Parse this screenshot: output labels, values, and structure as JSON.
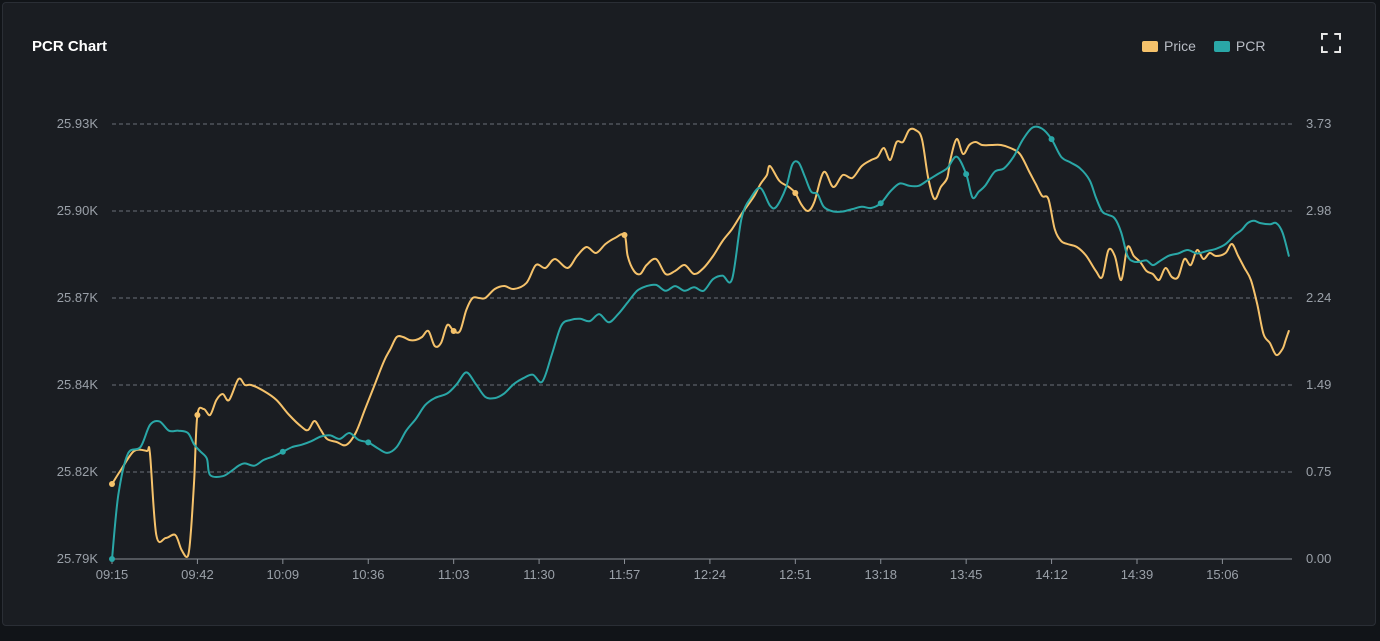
{
  "panel": {
    "title": "PCR Chart"
  },
  "legend": [
    {
      "label": "Price",
      "color": "#f5c26b"
    },
    {
      "label": "PCR",
      "color": "#2aa7a7"
    }
  ],
  "icons": {
    "expand": "fullscreen-icon"
  },
  "chart_data": {
    "type": "line",
    "title": "PCR Chart",
    "grid": "horizontal dashed",
    "legend_position": "top-right",
    "x_ticks": [
      "09:15",
      "09:42",
      "10:09",
      "10:36",
      "11:03",
      "11:30",
      "11:57",
      "12:24",
      "12:51",
      "13:18",
      "13:45",
      "14:12",
      "14:39",
      "15:06"
    ],
    "y_left_ticks": [
      "25.79K",
      "25.82K",
      "25.84K",
      "25.87K",
      "25.90K",
      "25.93K"
    ],
    "y_right_ticks": [
      "0.00",
      "0.75",
      "1.49",
      "2.24",
      "2.98",
      "3.73"
    ],
    "y_left_range": [
      25790,
      25935
    ],
    "y_right_range": [
      0,
      3.73
    ],
    "x_range_minutes": [
      0,
      373
    ],
    "series": [
      {
        "name": "Price",
        "axis": "left",
        "color": "#f5c26b",
        "points": [
          [
            0,
            25815
          ],
          [
            3,
            25820
          ],
          [
            7,
            25826
          ],
          [
            11,
            25826
          ],
          [
            12,
            25825
          ],
          [
            14,
            25798
          ],
          [
            17,
            25797
          ],
          [
            20,
            25798
          ],
          [
            22,
            25793
          ],
          [
            24,
            25791
          ],
          [
            25,
            25800
          ],
          [
            26,
            25817
          ],
          [
            27,
            25838
          ],
          [
            29,
            25840
          ],
          [
            31,
            25838
          ],
          [
            33,
            25843
          ],
          [
            35,
            25845
          ],
          [
            37,
            25843
          ],
          [
            40,
            25850
          ],
          [
            42,
            25848
          ],
          [
            44,
            25848
          ],
          [
            48,
            25846
          ],
          [
            52,
            25843
          ],
          [
            56,
            25838
          ],
          [
            60,
            25834
          ],
          [
            62,
            25833
          ],
          [
            64,
            25836
          ],
          [
            66,
            25833
          ],
          [
            68,
            25830
          ],
          [
            71,
            25829
          ],
          [
            74,
            25828
          ],
          [
            77,
            25832
          ],
          [
            80,
            25840
          ],
          [
            83,
            25848
          ],
          [
            86,
            25856
          ],
          [
            88,
            25860
          ],
          [
            90,
            25864
          ],
          [
            92,
            25864
          ],
          [
            94,
            25863
          ],
          [
            96,
            25863
          ],
          [
            98,
            25864
          ],
          [
            100,
            25866
          ],
          [
            102,
            25861
          ],
          [
            104,
            25862
          ],
          [
            106,
            25868
          ],
          [
            108,
            25866
          ],
          [
            110,
            25866
          ],
          [
            112,
            25873
          ],
          [
            114,
            25877
          ],
          [
            116,
            25877
          ],
          [
            118,
            25877
          ],
          [
            121,
            25880
          ],
          [
            124,
            25881
          ],
          [
            127,
            25880
          ],
          [
            131,
            25882
          ],
          [
            134,
            25888
          ],
          [
            137,
            25887
          ],
          [
            140,
            25890
          ],
          [
            144,
            25887
          ],
          [
            147,
            25891
          ],
          [
            150,
            25894
          ],
          [
            153,
            25892
          ],
          [
            156,
            25895
          ],
          [
            159,
            25897
          ],
          [
            162,
            25898
          ],
          [
            163,
            25891
          ],
          [
            165,
            25886
          ],
          [
            167,
            25885
          ],
          [
            169,
            25888
          ],
          [
            172,
            25890
          ],
          [
            175,
            25885
          ],
          [
            178,
            25886
          ],
          [
            181,
            25888
          ],
          [
            184,
            25885
          ],
          [
            187,
            25887
          ],
          [
            190,
            25891
          ],
          [
            193,
            25896
          ],
          [
            196,
            25900
          ],
          [
            199,
            25905
          ],
          [
            201,
            25908
          ],
          [
            203,
            25911
          ],
          [
            205,
            25915
          ],
          [
            207,
            25918
          ],
          [
            208,
            25921
          ],
          [
            211,
            25916
          ],
          [
            214,
            25914
          ],
          [
            216,
            25912
          ],
          [
            218,
            25908
          ],
          [
            220,
            25906
          ],
          [
            222,
            25909
          ],
          [
            225,
            25919
          ],
          [
            228,
            25914
          ],
          [
            231,
            25918
          ],
          [
            234,
            25917
          ],
          [
            237,
            25921
          ],
          [
            240,
            25923
          ],
          [
            242,
            25924
          ],
          [
            244,
            25927
          ],
          [
            246,
            25923
          ],
          [
            248,
            25929
          ],
          [
            250,
            25929
          ],
          [
            252,
            25933
          ],
          [
            254,
            25933
          ],
          [
            256,
            25930
          ],
          [
            258,
            25917
          ],
          [
            260,
            25910
          ],
          [
            262,
            25914
          ],
          [
            264,
            25917
          ],
          [
            265,
            25923
          ],
          [
            267,
            25930
          ],
          [
            269,
            25925
          ],
          [
            271,
            25928
          ],
          [
            273,
            25929
          ],
          [
            275,
            25928
          ],
          [
            278,
            25928
          ],
          [
            281,
            25928
          ],
          [
            284,
            25927
          ],
          [
            287,
            25925
          ],
          [
            290,
            25919
          ],
          [
            292,
            25915
          ],
          [
            294,
            25911
          ],
          [
            296,
            25910
          ],
          [
            298,
            25900
          ],
          [
            300,
            25896
          ],
          [
            302,
            25895
          ],
          [
            305,
            25894
          ],
          [
            308,
            25891
          ],
          [
            311,
            25886
          ],
          [
            313,
            25884
          ],
          [
            315,
            25893
          ],
          [
            317,
            25891
          ],
          [
            319,
            25883
          ],
          [
            321,
            25894
          ],
          [
            323,
            25891
          ],
          [
            325,
            25889
          ],
          [
            327,
            25886
          ],
          [
            329,
            25885
          ],
          [
            331,
            25883
          ],
          [
            333,
            25887
          ],
          [
            335,
            25884
          ],
          [
            337,
            25884
          ],
          [
            339,
            25890
          ],
          [
            341,
            25888
          ],
          [
            343,
            25893
          ],
          [
            345,
            25890
          ],
          [
            347,
            25892
          ],
          [
            349,
            25891
          ],
          [
            352,
            25892
          ],
          [
            354,
            25895
          ],
          [
            356,
            25891
          ],
          [
            358,
            25887
          ],
          [
            360,
            25883
          ],
          [
            362,
            25875
          ],
          [
            364,
            25865
          ],
          [
            366,
            25862
          ],
          [
            368,
            25858
          ],
          [
            370,
            25860
          ],
          [
            371,
            25863
          ],
          [
            372,
            25866
          ]
        ]
      },
      {
        "name": "PCR",
        "axis": "right",
        "color": "#2aa7a7",
        "points": [
          [
            0,
            0.0
          ],
          [
            2,
            0.55
          ],
          [
            5,
            0.9
          ],
          [
            9,
            0.96
          ],
          [
            12,
            1.15
          ],
          [
            15,
            1.18
          ],
          [
            18,
            1.1
          ],
          [
            21,
            1.1
          ],
          [
            24,
            1.08
          ],
          [
            26,
            0.98
          ],
          [
            28,
            0.92
          ],
          [
            30,
            0.86
          ],
          [
            31,
            0.72
          ],
          [
            35,
            0.71
          ],
          [
            38,
            0.76
          ],
          [
            40,
            0.8
          ],
          [
            42,
            0.82
          ],
          [
            45,
            0.8
          ],
          [
            48,
            0.85
          ],
          [
            51,
            0.88
          ],
          [
            54,
            0.92
          ],
          [
            57,
            0.96
          ],
          [
            60,
            0.98
          ],
          [
            63,
            1.01
          ],
          [
            66,
            1.05
          ],
          [
            69,
            1.06
          ],
          [
            72,
            1.03
          ],
          [
            75,
            1.08
          ],
          [
            78,
            1.02
          ],
          [
            81,
            1.0
          ],
          [
            84,
            0.95
          ],
          [
            87,
            0.91
          ],
          [
            90,
            0.96
          ],
          [
            93,
            1.1
          ],
          [
            96,
            1.2
          ],
          [
            99,
            1.32
          ],
          [
            102,
            1.38
          ],
          [
            106,
            1.42
          ],
          [
            109,
            1.5
          ],
          [
            112,
            1.6
          ],
          [
            115,
            1.5
          ],
          [
            118,
            1.39
          ],
          [
            121,
            1.38
          ],
          [
            124,
            1.42
          ],
          [
            127,
            1.5
          ],
          [
            130,
            1.55
          ],
          [
            133,
            1.58
          ],
          [
            136,
            1.52
          ],
          [
            139,
            1.75
          ],
          [
            142,
            2.0
          ],
          [
            145,
            2.05
          ],
          [
            148,
            2.06
          ],
          [
            151,
            2.04
          ],
          [
            154,
            2.1
          ],
          [
            157,
            2.03
          ],
          [
            160,
            2.1
          ],
          [
            163,
            2.2
          ],
          [
            166,
            2.3
          ],
          [
            169,
            2.34
          ],
          [
            172,
            2.35
          ],
          [
            175,
            2.3
          ],
          [
            178,
            2.34
          ],
          [
            181,
            2.3
          ],
          [
            184,
            2.33
          ],
          [
            187,
            2.3
          ],
          [
            190,
            2.4
          ],
          [
            193,
            2.43
          ],
          [
            196,
            2.4
          ],
          [
            199,
            2.92
          ],
          [
            202,
            3.1
          ],
          [
            205,
            3.18
          ],
          [
            208,
            3.03
          ],
          [
            210,
            3.02
          ],
          [
            213,
            3.18
          ],
          [
            215,
            3.38
          ],
          [
            217,
            3.4
          ],
          [
            219,
            3.28
          ],
          [
            221,
            3.15
          ],
          [
            223,
            3.13
          ],
          [
            225,
            3.02
          ],
          [
            228,
            2.98
          ],
          [
            231,
            2.98
          ],
          [
            234,
            3.0
          ],
          [
            237,
            3.02
          ],
          [
            240,
            3.01
          ],
          [
            243,
            3.05
          ],
          [
            246,
            3.15
          ],
          [
            249,
            3.22
          ],
          [
            252,
            3.2
          ],
          [
            255,
            3.2
          ],
          [
            258,
            3.25
          ],
          [
            261,
            3.3
          ],
          [
            264,
            3.35
          ],
          [
            267,
            3.45
          ],
          [
            270,
            3.3
          ],
          [
            272,
            3.1
          ],
          [
            274,
            3.15
          ],
          [
            276,
            3.2
          ],
          [
            279,
            3.32
          ],
          [
            282,
            3.35
          ],
          [
            285,
            3.45
          ],
          [
            288,
            3.6
          ],
          [
            291,
            3.7
          ],
          [
            294,
            3.69
          ],
          [
            297,
            3.6
          ],
          [
            300,
            3.45
          ],
          [
            303,
            3.4
          ],
          [
            306,
            3.35
          ],
          [
            309,
            3.25
          ],
          [
            311,
            3.1
          ],
          [
            313,
            2.98
          ],
          [
            315,
            2.95
          ],
          [
            317,
            2.92
          ],
          [
            319,
            2.8
          ],
          [
            321,
            2.6
          ],
          [
            323,
            2.55
          ],
          [
            325,
            2.55
          ],
          [
            327,
            2.56
          ],
          [
            329,
            2.52
          ],
          [
            331,
            2.55
          ],
          [
            334,
            2.6
          ],
          [
            337,
            2.62
          ],
          [
            340,
            2.65
          ],
          [
            343,
            2.62
          ],
          [
            346,
            2.64
          ],
          [
            349,
            2.66
          ],
          [
            352,
            2.7
          ],
          [
            355,
            2.78
          ],
          [
            357,
            2.82
          ],
          [
            359,
            2.88
          ],
          [
            361,
            2.9
          ],
          [
            363,
            2.88
          ],
          [
            366,
            2.87
          ],
          [
            368,
            2.88
          ],
          [
            370,
            2.8
          ],
          [
            372,
            2.6
          ]
        ]
      }
    ]
  }
}
